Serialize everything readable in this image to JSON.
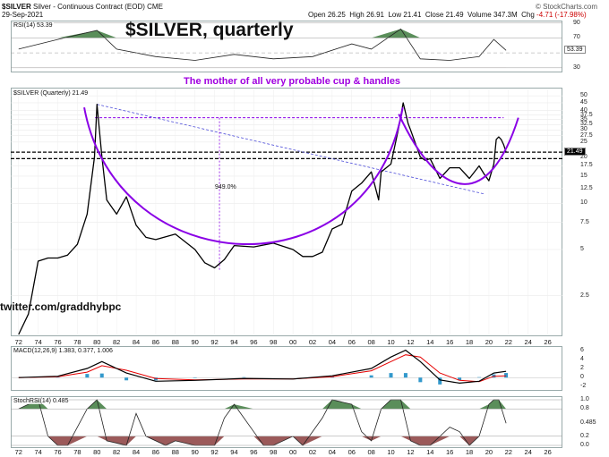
{
  "header": {
    "symbol": "$SILVER",
    "name": "Silver - Continuous Contract (EOD)",
    "exchange": "CME",
    "date": "29-Sep-2021",
    "open_label": "Open",
    "open": "26.25",
    "high_label": "High",
    "high": "26.91",
    "low_label": "Low",
    "low": "21.41",
    "close_label": "Close",
    "close": "21.49",
    "volume_label": "Volume",
    "volume": "347.3M",
    "change_label": "Chg",
    "change": "-4.71 (-17.98%)",
    "credit": "© StockCharts.com"
  },
  "annotations": {
    "title": "$SILVER, quarterly",
    "subtitle": "The mother of all very probable cup & handles",
    "twitter": "twitter.com/graddhybpc",
    "pct_label": "949.0%"
  },
  "colors": {
    "price": "#000000",
    "cup": "#8a00e6",
    "dashed": "#4d4dd9",
    "macd_line": "#000000",
    "macd_signal": "#e60000",
    "macd_hist": "#3399cc",
    "osc_up_fill": "#3d7a3d",
    "osc_down_fill": "#8a3d3d"
  },
  "chart_data": [
    {
      "type": "line",
      "panel": "rsi",
      "label": "RSI(14) 53.39",
      "current": 53.39,
      "levels": [
        30,
        50,
        70,
        90
      ],
      "ylim": [
        25,
        92
      ],
      "x": [
        1972,
        1976,
        1980,
        1982,
        1986,
        1990,
        1994,
        1998,
        2002,
        2006,
        2008,
        2011,
        2013,
        2016,
        2019,
        2020.5,
        2021.75
      ],
      "values": [
        55,
        68,
        80,
        55,
        45,
        40,
        48,
        42,
        45,
        62,
        55,
        82,
        42,
        40,
        45,
        68,
        53.39
      ]
    },
    {
      "type": "line",
      "panel": "price",
      "label": "$SILVER (Quarterly) 21.49",
      "scale": "log",
      "current": 21.49,
      "ylim": [
        1.4,
        55
      ],
      "y_ticks": [
        2.5,
        5,
        7.5,
        10,
        12.5,
        15,
        17.5,
        20,
        25,
        27.5,
        30,
        32.5,
        35,
        37.5,
        40,
        45,
        50
      ],
      "x_ticks": [
        "72",
        "74",
        "76",
        "78",
        "80",
        "82",
        "84",
        "86",
        "88",
        "90",
        "92",
        "94",
        "96",
        "98",
        "00",
        "02",
        "04",
        "06",
        "08",
        "10",
        "12",
        "14",
        "16",
        "18",
        "20",
        "22",
        "24",
        "26"
      ],
      "x": [
        1972,
        1973,
        1974,
        1975,
        1976,
        1977,
        1978,
        1979,
        1979.75,
        1980,
        1980.5,
        1981,
        1982,
        1983,
        1984,
        1985,
        1986,
        1988,
        1990,
        1991,
        1992,
        1993,
        1994,
        1996,
        1998,
        2000,
        2001,
        2002,
        2003,
        2004,
        2005,
        2006,
        2007,
        2008,
        2008.75,
        2009,
        2010,
        2010.75,
        2011.25,
        2011.75,
        2012,
        2013,
        2013.5,
        2014,
        2015,
        2016,
        2017,
        2018,
        2019,
        2019.5,
        2020,
        2020.5,
        2020.75,
        2021,
        2021.25,
        2021.5,
        2021.75
      ],
      "values": [
        1.4,
        1.9,
        4.2,
        4.4,
        4.4,
        4.6,
        5.4,
        8.5,
        20,
        44,
        20,
        10.5,
        8.5,
        11,
        7.2,
        6,
        5.8,
        6.3,
        5,
        4.1,
        3.8,
        4.3,
        5.3,
        5.2,
        5.5,
        5,
        4.5,
        4.5,
        4.8,
        6.8,
        7.3,
        12,
        13.5,
        16,
        10.5,
        16,
        18,
        30,
        45,
        33,
        30,
        20,
        19,
        19.5,
        14.5,
        17,
        17,
        14.5,
        17.5,
        15.5,
        14,
        18,
        26,
        27,
        26,
        24,
        21.49
      ],
      "horizontal_levels": [
        21.49,
        19.5
      ],
      "dashed_resistance": 36
    },
    {
      "type": "line",
      "panel": "macd",
      "label": "MACD(12,26,9) 1.383, 0.377, 1.006",
      "macd": 1.383,
      "signal": 0.377,
      "hist": 1.006,
      "y_ticks": [
        6,
        4,
        2,
        0,
        -2
      ],
      "ylim": [
        -2.5,
        6.5
      ],
      "x": [
        1972,
        1976,
        1979,
        1980.5,
        1983,
        1986,
        1990,
        1995,
        2000,
        2004,
        2008,
        2010,
        2011.5,
        2013,
        2015,
        2017,
        2019,
        2020.5,
        2021.75
      ],
      "series": [
        {
          "name": "MACD",
          "values": [
            0,
            0.3,
            2,
            3.5,
            1,
            -0.8,
            -0.6,
            -0.2,
            -0.3,
            0.4,
            2,
            4.5,
            6,
            3.5,
            -0.5,
            -1.2,
            -0.8,
            1,
            1.383
          ]
        },
        {
          "name": "Signal",
          "values": [
            0,
            0.2,
            1.2,
            2.6,
            1.6,
            -0.2,
            -0.5,
            -0.3,
            -0.3,
            0.2,
            1.5,
            3.5,
            5,
            4.5,
            1,
            -0.6,
            -0.9,
            0.3,
            0.377
          ]
        }
      ]
    },
    {
      "type": "line",
      "panel": "stochrsi",
      "label": "StochRSI(14) 0.485",
      "current": 0.485,
      "y_ticks": [
        1.0,
        0.8,
        0.485,
        0.2,
        0.0
      ],
      "ylim": [
        0,
        1
      ],
      "x": [
        1972,
        1974,
        1975,
        1976,
        1977,
        1979,
        1980,
        1981,
        1983,
        1984,
        1985,
        1987,
        1988,
        1990,
        1992,
        1993,
        1994,
        1996,
        1997,
        1998,
        2000,
        2001,
        2003,
        2004,
        2006,
        2007,
        2008,
        2009,
        2010,
        2011,
        2012,
        2013,
        2014,
        2016,
        2017,
        2018,
        2019,
        2020,
        2020.5,
        2021,
        2021.75
      ],
      "values": [
        0.8,
        1,
        0.2,
        0,
        0,
        0.8,
        1,
        0.1,
        0,
        0.7,
        0.2,
        0,
        0.1,
        0,
        0,
        0.6,
        0.9,
        0.3,
        0,
        0,
        0.2,
        0,
        0.6,
        1,
        0.9,
        0.3,
        0.1,
        0.8,
        1,
        1,
        0.1,
        0,
        0,
        0.4,
        0.3,
        0,
        0.2,
        0.9,
        1,
        1,
        0.485
      ]
    }
  ]
}
